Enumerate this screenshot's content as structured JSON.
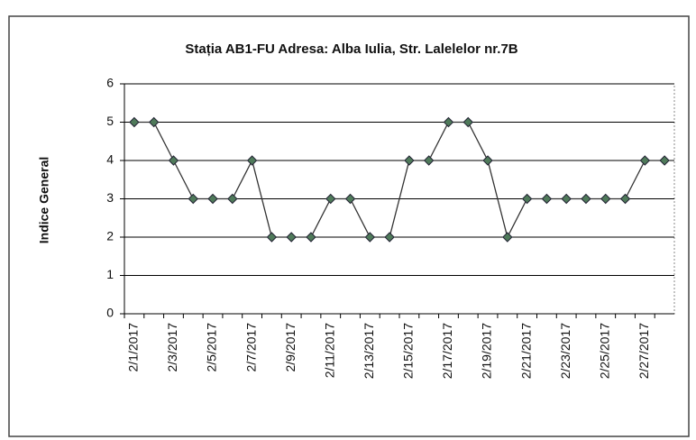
{
  "chart_data": {
    "type": "line",
    "title": "Stația AB1-FU  Adresa: Alba Iulia, Str. Lalelelor nr.7B",
    "y_label": "Indice General",
    "categories": [
      "2/1/2017",
      null,
      "2/3/2017",
      null,
      "2/5/2017",
      null,
      "2/7/2017",
      null,
      "2/9/2017",
      null,
      "2/11/2017",
      null,
      "2/13/2017",
      null,
      "2/15/2017",
      null,
      "2/17/2017",
      null,
      "2/19/2017",
      null,
      "2/21/2017",
      null,
      "2/23/2017",
      null,
      "2/25/2017",
      null,
      "2/27/2017",
      null
    ],
    "series": [
      {
        "name": "Indice General",
        "color": "#4f7a5a",
        "values": [
          5,
          5,
          4,
          3,
          3,
          3,
          4,
          2,
          2,
          2,
          3,
          3,
          2,
          2,
          4,
          4,
          5,
          5,
          4,
          2,
          3,
          3,
          3,
          3,
          3,
          3,
          4,
          4
        ]
      }
    ],
    "ylim": [
      0,
      6
    ],
    "yticks": [
      0,
      1,
      2,
      3,
      4,
      5,
      6
    ],
    "grid": true,
    "legend": false
  }
}
